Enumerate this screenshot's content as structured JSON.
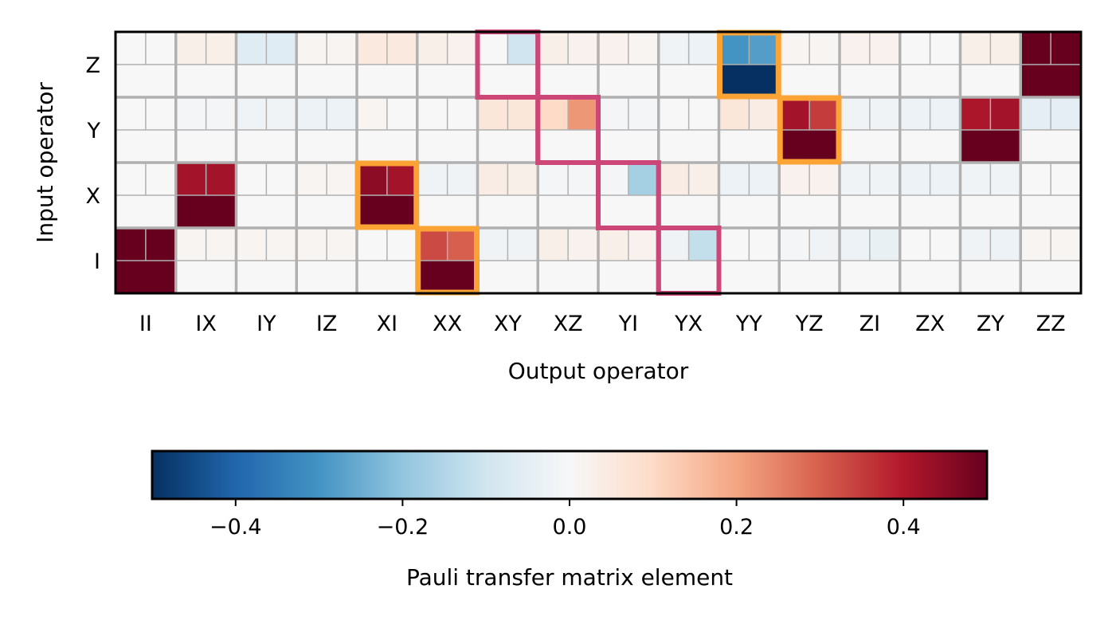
{
  "chart_data": {
    "type": "heatmap",
    "xlabel": "Output operator",
    "ylabel": "Input operator",
    "x_categories": [
      "II",
      "IX",
      "IY",
      "IZ",
      "XI",
      "XX",
      "XY",
      "XZ",
      "YI",
      "YX",
      "YY",
      "YZ",
      "ZI",
      "ZX",
      "ZY",
      "ZZ"
    ],
    "y_categories": [
      "I",
      "X",
      "Y",
      "Z"
    ],
    "cell_layout": "each (input, output) block shows 4 sub-cells: top-left, top-right, bottom (merged)",
    "colorbar": {
      "label": "Pauli transfer matrix element",
      "colormap": "RdBu_r",
      "range": [
        -0.5,
        0.5
      ],
      "ticks": [
        -0.4,
        -0.2,
        0.0,
        0.2,
        0.4
      ],
      "tick_labels": [
        "−0.4",
        "−0.2",
        "0.0",
        "0.2",
        "0.4"
      ]
    },
    "blocks": {
      "I": {
        "II": [
          0.5,
          0.5,
          0.5
        ],
        "IX": [
          0.01,
          0.01,
          0.0
        ],
        "IY": [
          0.01,
          0.01,
          0.0
        ],
        "IZ": [
          0.01,
          0.01,
          0.0
        ],
        "XI": [
          0.0,
          0.0,
          0.0
        ],
        "XX": [
          0.33,
          0.3,
          0.5
        ],
        "XY": [
          -0.02,
          -0.02,
          0.0
        ],
        "XZ": [
          0.03,
          0.02,
          0.0
        ],
        "YI": [
          0.03,
          0.02,
          0.0
        ],
        "YX": [
          -0.02,
          -0.12,
          0.0
        ],
        "YY": [
          0.0,
          0.0,
          0.0
        ],
        "YZ": [
          -0.01,
          -0.02,
          0.0
        ],
        "ZI": [
          -0.03,
          -0.04,
          0.0
        ],
        "ZX": [
          0.0,
          0.0,
          0.0
        ],
        "ZY": [
          -0.02,
          -0.03,
          0.0
        ],
        "ZZ": [
          0.01,
          0.01,
          0.0
        ]
      },
      "X": {
        "II": [
          0.0,
          0.0,
          0.0
        ],
        "IX": [
          0.42,
          0.42,
          0.5
        ],
        "IY": [
          0.0,
          0.0,
          0.0
        ],
        "IZ": [
          0.01,
          0.01,
          0.0
        ],
        "XI": [
          0.45,
          0.42,
          0.5
        ],
        "XX": [
          -0.02,
          -0.02,
          0.0
        ],
        "XY": [
          0.04,
          0.03,
          0.0
        ],
        "XZ": [
          -0.01,
          -0.01,
          0.0
        ],
        "YI": [
          -0.01,
          -0.17,
          0.0
        ],
        "YX": [
          0.04,
          0.03,
          0.0
        ],
        "YY": [
          -0.03,
          -0.03,
          0.0
        ],
        "YZ": [
          0.02,
          0.02,
          0.0
        ],
        "ZI": [
          -0.02,
          -0.02,
          0.0
        ],
        "ZX": [
          -0.03,
          -0.03,
          0.0
        ],
        "ZY": [
          -0.02,
          -0.02,
          0.0
        ],
        "ZZ": [
          0.0,
          0.0,
          0.0
        ]
      },
      "Y": {
        "II": [
          0.0,
          0.0,
          0.0
        ],
        "IX": [
          -0.01,
          -0.01,
          0.0
        ],
        "IY": [
          -0.02,
          -0.02,
          0.0
        ],
        "IZ": [
          -0.03,
          -0.03,
          0.0
        ],
        "XI": [
          0.01,
          0.0,
          0.0
        ],
        "XX": [
          0.0,
          0.0,
          0.0
        ],
        "XY": [
          0.06,
          0.06,
          0.0
        ],
        "XZ": [
          0.1,
          0.22,
          0.0
        ],
        "YI": [
          -0.01,
          -0.01,
          0.0
        ],
        "YX": [
          0.0,
          0.0,
          0.0
        ],
        "YY": [
          0.06,
          0.04,
          0.0
        ],
        "YZ": [
          0.42,
          0.35,
          0.5
        ],
        "ZI": [
          -0.02,
          -0.02,
          0.0
        ],
        "ZX": [
          -0.03,
          -0.03,
          0.0
        ],
        "ZY": [
          0.41,
          0.42,
          0.5
        ],
        "ZZ": [
          -0.05,
          -0.05,
          0.0
        ]
      },
      "Z": {
        "II": [
          0.0,
          0.0,
          0.0
        ],
        "IX": [
          0.03,
          0.03,
          0.0
        ],
        "IY": [
          -0.06,
          -0.06,
          0.0
        ],
        "IZ": [
          0.01,
          0.01,
          0.0
        ],
        "XI": [
          0.05,
          0.05,
          0.0
        ],
        "XX": [
          0.03,
          0.02,
          0.0
        ],
        "XY": [
          0.0,
          -0.1,
          0.0
        ],
        "XZ": [
          0.03,
          0.02,
          0.0
        ],
        "YI": [
          0.02,
          0.01,
          0.0
        ],
        "YX": [
          -0.02,
          -0.03,
          0.0
        ],
        "YY": [
          -0.3,
          -0.28,
          -0.5
        ],
        "YZ": [
          0.01,
          0.01,
          0.0
        ],
        "ZI": [
          0.02,
          0.02,
          0.0
        ],
        "ZX": [
          0.0,
          0.0,
          0.0
        ],
        "ZY": [
          0.03,
          0.03,
          0.0
        ],
        "ZZ": [
          0.5,
          0.5,
          0.5
        ]
      }
    },
    "highlights": {
      "orange": [
        [
          "I",
          "XX"
        ],
        [
          "X",
          "XI"
        ],
        [
          "Y",
          "YZ"
        ],
        [
          "Z",
          "YY"
        ]
      ],
      "pink": [
        [
          "Z",
          "XY"
        ],
        [
          "Y",
          "XZ"
        ],
        [
          "X",
          "YI"
        ],
        [
          "I",
          "YX"
        ]
      ]
    },
    "highlight_colors": {
      "orange": "#fca336",
      "pink": "#cc4778"
    },
    "grid": true
  }
}
